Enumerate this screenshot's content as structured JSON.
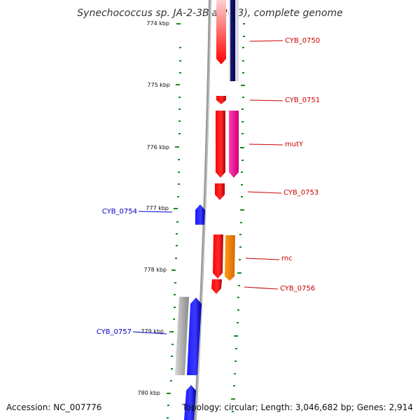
{
  "title": "Synechococcus sp. JA-2-3B'a(2-13), complete genome",
  "accession": "Accession: NC_007776",
  "summary": "Topology: circular; Length: 3,046,682 bp; Genes: 2,914",
  "ticks": [
    "774 kbp",
    "775 kbp",
    "776 kbp",
    "777 kbp",
    "778 kbp",
    "779 kbp",
    "780 kbp"
  ],
  "colors": {
    "forward_cds": "#ff0000",
    "reverse_cds": "#0000ff",
    "tick_green": "#1a8a1a",
    "backbone": "#888888",
    "label_red": "#cc0000",
    "label_blue": "#0000cc"
  },
  "right_labels": [
    "CYB_0750",
    "CYB_0751",
    "mutY",
    "CYB_0753",
    "rnc",
    "CYB_0756"
  ],
  "left_labels": [
    "CYB_0754",
    "CYB_0757"
  ]
}
